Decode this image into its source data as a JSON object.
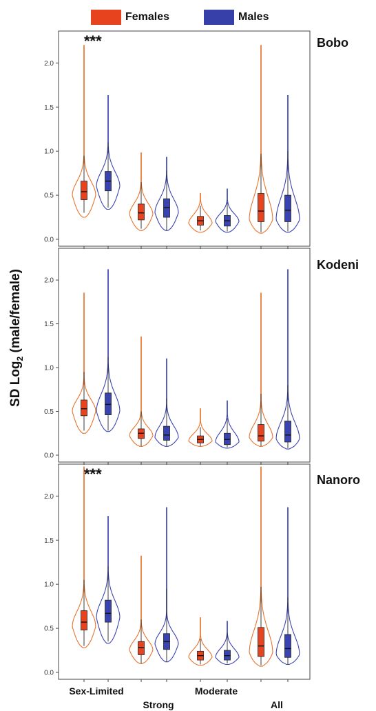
{
  "legend": {
    "females": {
      "label": "Females",
      "color": "#E8431F"
    },
    "males": {
      "label": "Males",
      "color": "#3640A8"
    }
  },
  "yaxis_label": {
    "main": "SD Log",
    "sub": "2",
    "rest": " (male/female)"
  },
  "colors": {
    "female_outline": "#E8742A",
    "female_box": "#E8431F",
    "male_outline": "#3A44B0",
    "male_box": "#3A44B0"
  },
  "chart_data": [
    {
      "type": "violin",
      "panel": "Bobo",
      "annotation": "***",
      "categories": [
        "Sex-Limited",
        "Strong",
        "Moderate",
        "All"
      ],
      "ylim": [
        0,
        2.3
      ],
      "yticks": [
        "0.0",
        "0.5",
        "1.0",
        "1.5",
        "2.0"
      ],
      "series": [
        {
          "name": "Females",
          "min": [
            0.25,
            0.1,
            0.08,
            0.07
          ],
          "max": [
            2.2,
            0.98,
            0.52,
            2.2
          ],
          "q1": [
            0.45,
            0.22,
            0.16,
            0.2
          ],
          "median": [
            0.54,
            0.3,
            0.21,
            0.32
          ],
          "q3": [
            0.66,
            0.4,
            0.26,
            0.52
          ],
          "whisker_lo": [
            0.3,
            0.12,
            0.1,
            0.08
          ],
          "whisker_hi": [
            0.95,
            0.65,
            0.38,
            0.97
          ],
          "mode": [
            0.5,
            0.28,
            0.18,
            0.22
          ]
        },
        {
          "name": "Males",
          "min": [
            0.34,
            0.1,
            0.08,
            0.08
          ],
          "max": [
            1.63,
            0.93,
            0.57,
            1.63
          ],
          "q1": [
            0.55,
            0.25,
            0.15,
            0.2
          ],
          "median": [
            0.66,
            0.36,
            0.21,
            0.33
          ],
          "q3": [
            0.77,
            0.46,
            0.27,
            0.5
          ],
          "whisker_lo": [
            0.36,
            0.1,
            0.09,
            0.09
          ],
          "whisker_hi": [
            1.1,
            0.78,
            0.42,
            1.0
          ],
          "mode": [
            0.6,
            0.3,
            0.2,
            0.22
          ]
        }
      ]
    },
    {
      "type": "violin",
      "panel": "Kodeni",
      "annotation": "",
      "categories": [
        "Sex-Limited",
        "Strong",
        "Moderate",
        "All"
      ],
      "ylim": [
        0,
        2.3
      ],
      "yticks": [
        "0.0",
        "0.5",
        "1.0",
        "1.5",
        "2.0"
      ],
      "series": [
        {
          "name": "Females",
          "min": [
            0.25,
            0.1,
            0.1,
            0.1
          ],
          "max": [
            1.85,
            1.35,
            0.53,
            1.85
          ],
          "q1": [
            0.45,
            0.19,
            0.14,
            0.16
          ],
          "median": [
            0.53,
            0.25,
            0.18,
            0.22
          ],
          "q3": [
            0.63,
            0.3,
            0.22,
            0.35
          ],
          "whisker_lo": [
            0.28,
            0.1,
            0.1,
            0.1
          ],
          "whisker_hi": [
            0.95,
            0.5,
            0.32,
            0.7
          ],
          "mode": [
            0.5,
            0.22,
            0.16,
            0.2
          ]
        },
        {
          "name": "Males",
          "min": [
            0.27,
            0.1,
            0.08,
            0.07
          ],
          "max": [
            2.12,
            1.1,
            0.62,
            2.12
          ],
          "q1": [
            0.46,
            0.17,
            0.12,
            0.15
          ],
          "median": [
            0.58,
            0.23,
            0.18,
            0.23
          ],
          "q3": [
            0.71,
            0.33,
            0.25,
            0.39
          ],
          "whisker_lo": [
            0.28,
            0.1,
            0.09,
            0.08
          ],
          "whisker_hi": [
            1.12,
            0.65,
            0.42,
            0.8
          ],
          "mode": [
            0.5,
            0.2,
            0.15,
            0.18
          ]
        }
      ]
    },
    {
      "type": "violin",
      "panel": "Nanoro",
      "annotation": "***",
      "categories": [
        "Sex-Limited",
        "Strong",
        "Moderate",
        "All"
      ],
      "ylim": [
        0,
        2.3
      ],
      "yticks": [
        "0.0",
        "0.5",
        "1.0",
        "1.5",
        "2.0"
      ],
      "series": [
        {
          "name": "Females",
          "min": [
            0.28,
            0.1,
            0.08,
            0.07
          ],
          "max": [
            2.33,
            1.32,
            0.62,
            2.33
          ],
          "q1": [
            0.48,
            0.2,
            0.14,
            0.18
          ],
          "median": [
            0.57,
            0.28,
            0.19,
            0.3
          ],
          "q3": [
            0.7,
            0.35,
            0.24,
            0.51
          ],
          "whisker_lo": [
            0.3,
            0.1,
            0.09,
            0.08
          ],
          "whisker_hi": [
            1.05,
            0.6,
            0.38,
            0.97
          ],
          "mode": [
            0.52,
            0.25,
            0.17,
            0.22
          ]
        },
        {
          "name": "Males",
          "min": [
            0.33,
            0.12,
            0.09,
            0.09
          ],
          "max": [
            1.77,
            1.87,
            0.58,
            1.87
          ],
          "q1": [
            0.57,
            0.26,
            0.14,
            0.17
          ],
          "median": [
            0.67,
            0.35,
            0.19,
            0.27
          ],
          "q3": [
            0.82,
            0.44,
            0.25,
            0.43
          ],
          "whisker_lo": [
            0.35,
            0.12,
            0.1,
            0.09
          ],
          "whisker_hi": [
            1.2,
            0.95,
            0.45,
            0.85
          ],
          "mode": [
            0.62,
            0.32,
            0.17,
            0.2
          ]
        }
      ]
    }
  ]
}
